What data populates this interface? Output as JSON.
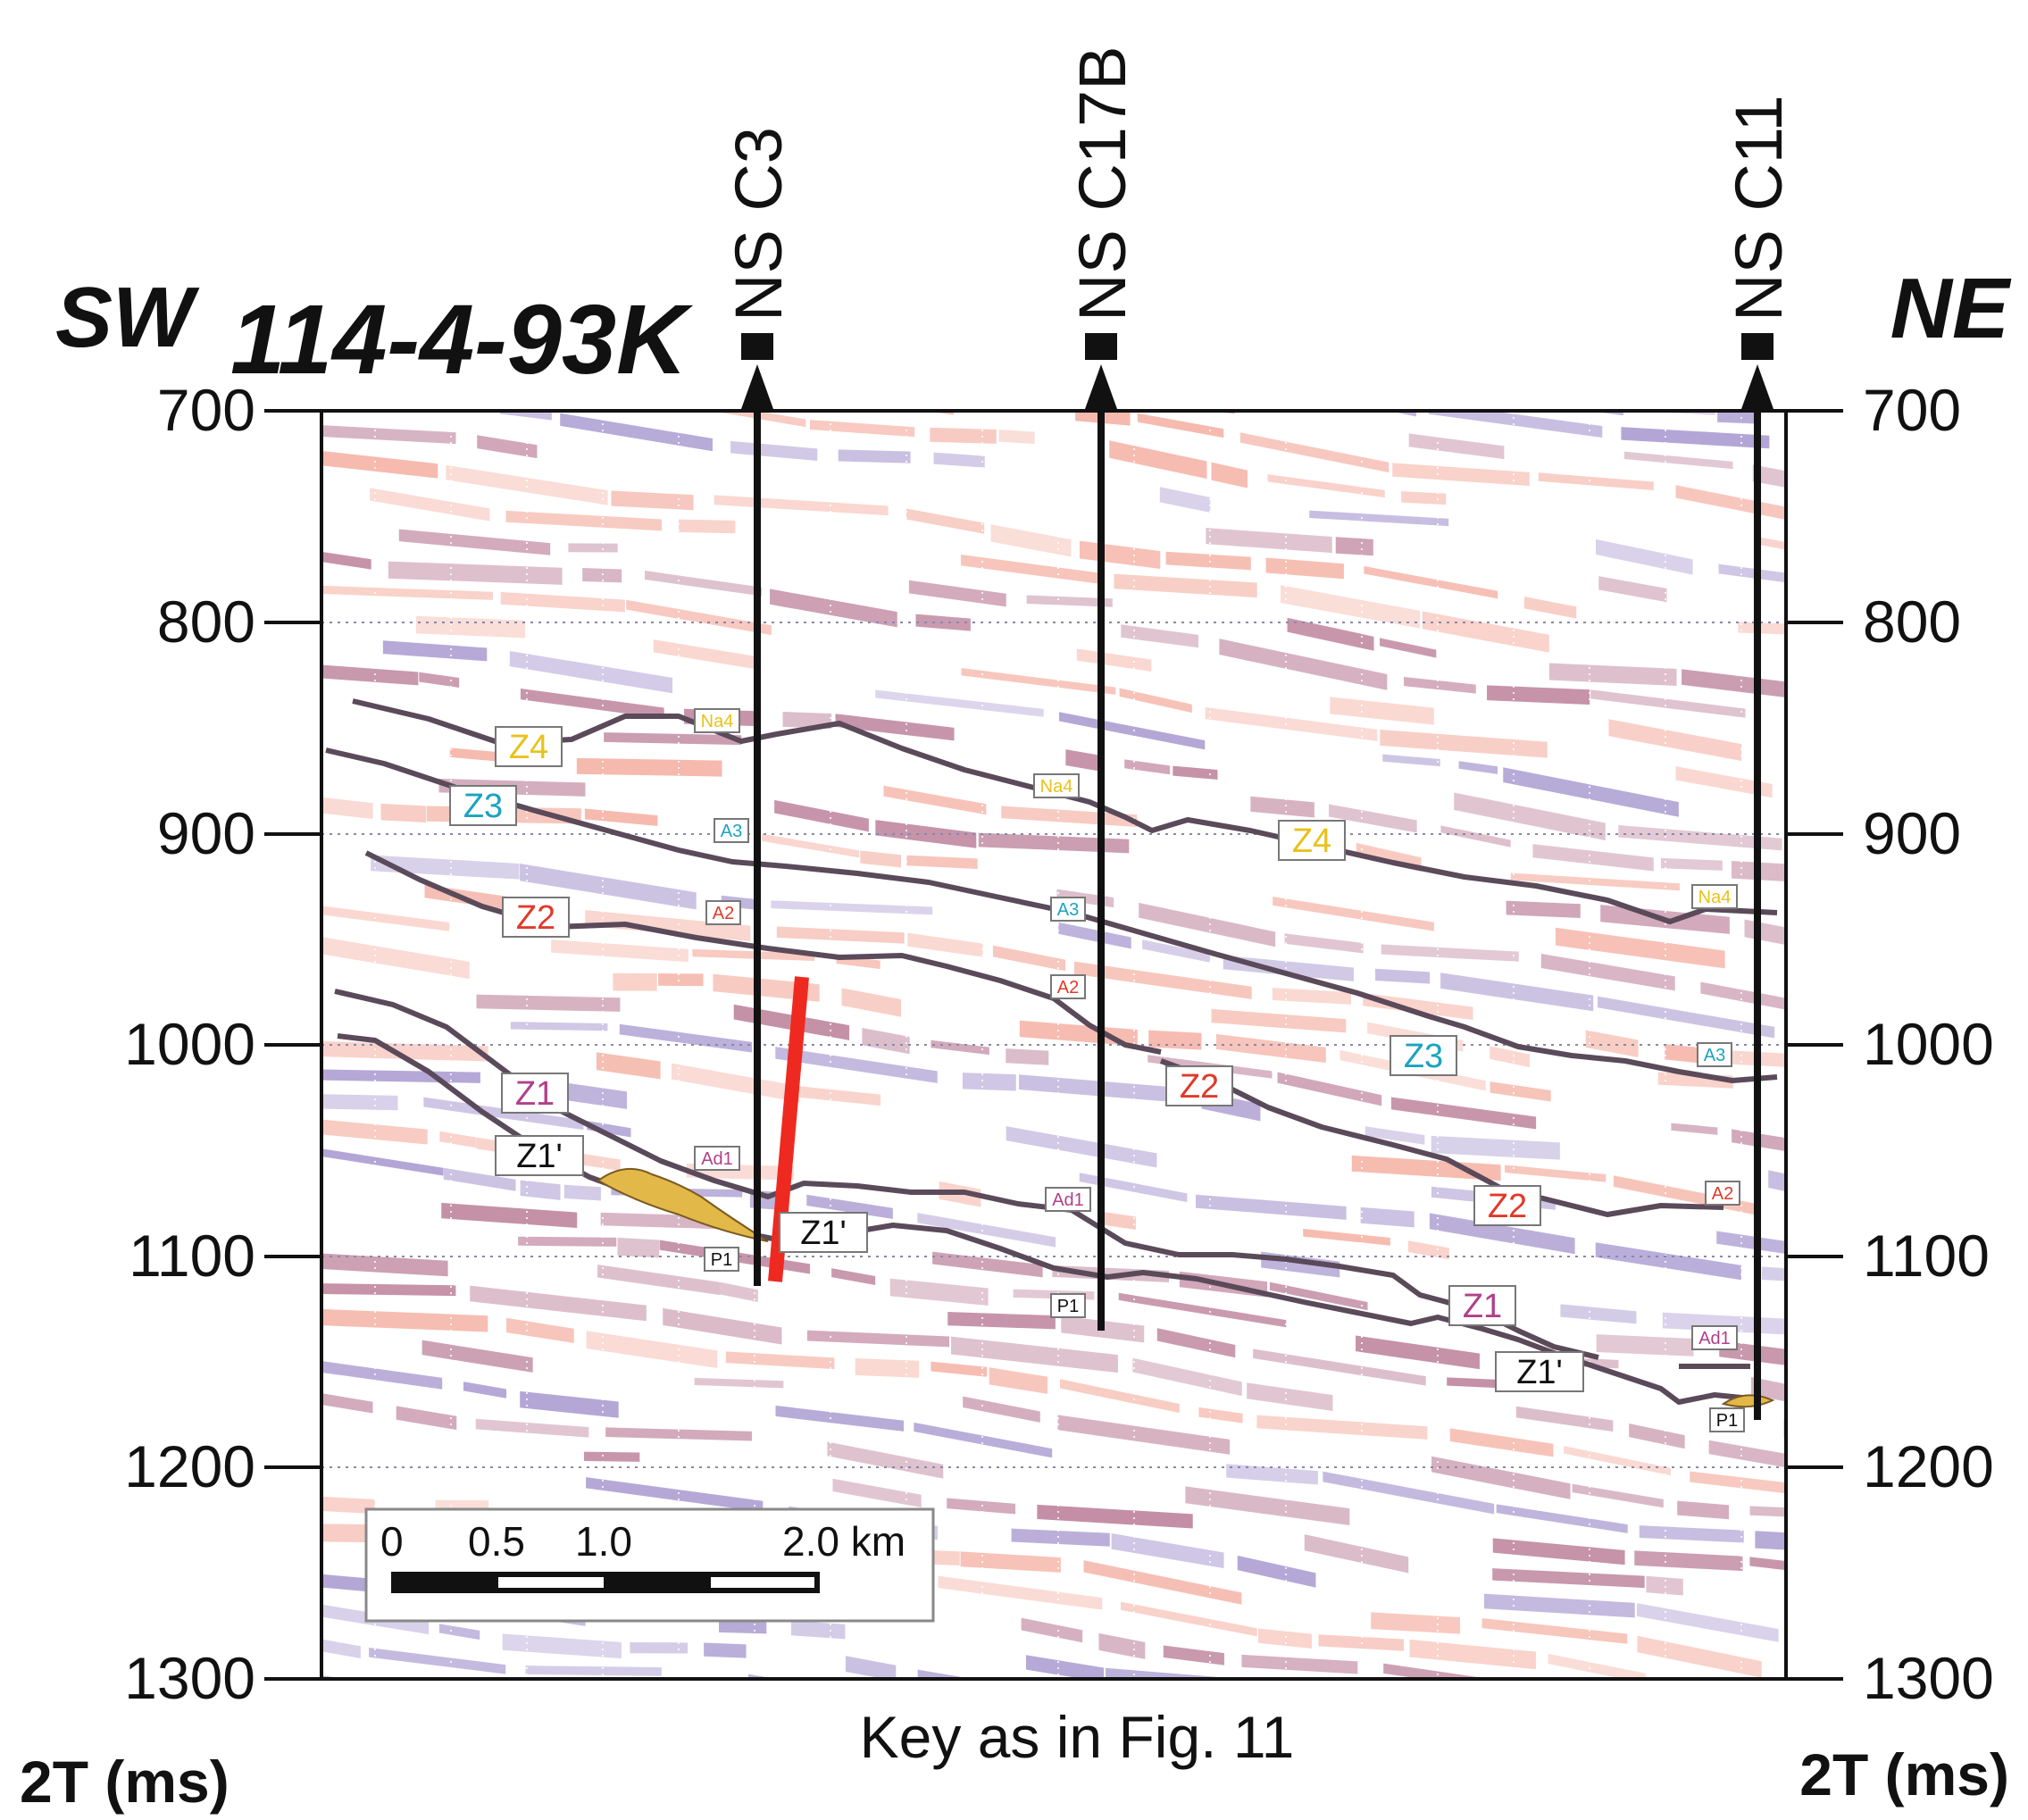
{
  "title": {
    "sw": "SW",
    "line": "114-4-93K",
    "ne": "NE"
  },
  "axes": {
    "y_ticks": [
      "700",
      "800",
      "900",
      "1000",
      "1100",
      "1200",
      "1300"
    ],
    "y_unit": "2T (ms)",
    "y_range": [
      700,
      1300
    ]
  },
  "wells": [
    {
      "name": "NS C3"
    },
    {
      "name": "NS C17B"
    },
    {
      "name": "NS C11"
    }
  ],
  "key_text": "Key as in Fig. 11",
  "scale_bar": {
    "labels": [
      "0",
      "0.5",
      "1.0",
      "2.0 km"
    ]
  },
  "colors": {
    "Z4": "#e8c21a",
    "Z3": "#1aa3c0",
    "Z2": "#e03a2a",
    "Z1": "#b0408a",
    "Z1prime": "#111111",
    "fault": "#ee2a20",
    "seismic_red": "#f2a090",
    "seismic_purple": "#9a88c8",
    "seismic_dark": "#b06a88"
  },
  "labels": {
    "Z4": "Z4",
    "Z3": "Z3",
    "Z2": "Z2",
    "Z1": "Z1",
    "Z1p": "Z1'",
    "Na4": "Na4",
    "A3": "A3",
    "A2": "A2",
    "Ad1": "Ad1",
    "P1": "P1"
  }
}
